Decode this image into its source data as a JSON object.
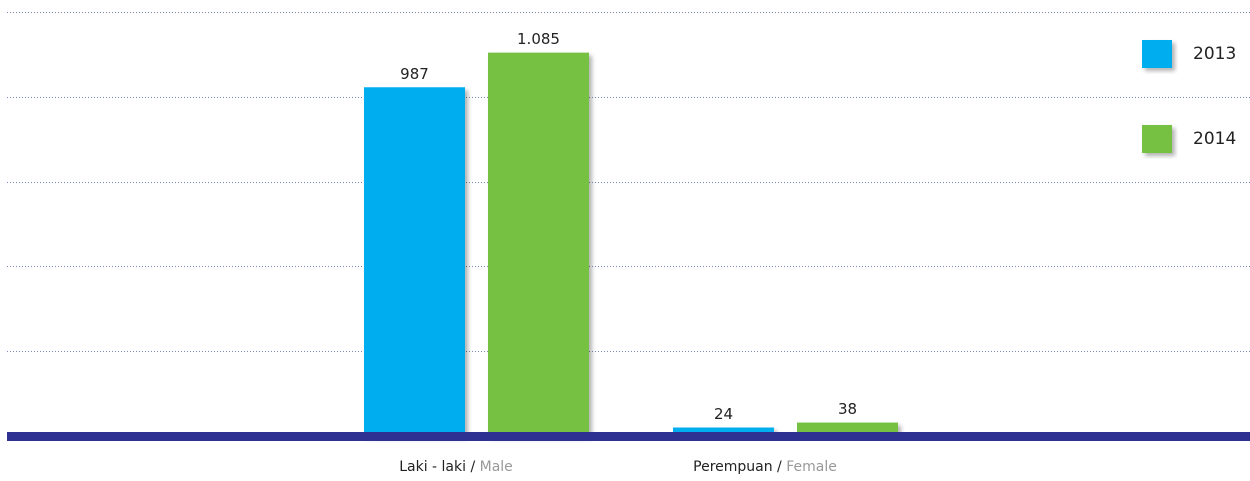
{
  "chart_data": {
    "type": "bar",
    "categories": [
      {
        "local": "Laki - laki /",
        "english": "Male"
      },
      {
        "local": "Perempuan /",
        "english": "Female"
      }
    ],
    "series": [
      {
        "name": "2013",
        "color": "#00adef",
        "values": [
          987,
          24
        ],
        "value_labels": [
          "987",
          "24"
        ]
      },
      {
        "name": "2014",
        "color": "#76c043",
        "values": [
          1085,
          38
        ],
        "value_labels": [
          "1.085",
          "38"
        ]
      }
    ],
    "ylim": [
      0,
      1200
    ],
    "yticks": [
      0,
      240,
      480,
      720,
      960,
      1200
    ],
    "grid": true,
    "legend": "top-right"
  }
}
